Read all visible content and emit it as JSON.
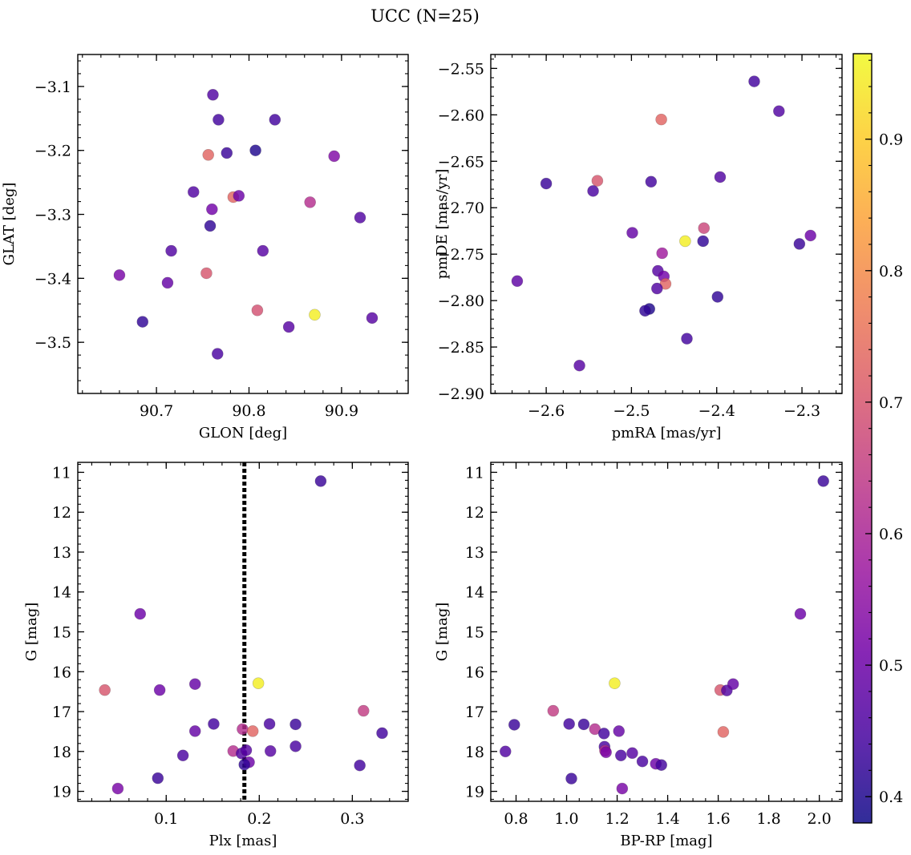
{
  "title": "UCC (N=25)",
  "colormap": {
    "name": "plasma",
    "stops": [
      "#0d0887",
      "#46039f",
      "#7201a8",
      "#9c179e",
      "#bd3786",
      "#d8576b",
      "#ed7953",
      "#fb9f3a",
      "#fdca26",
      "#f0f921"
    ],
    "range": [
      0.38,
      0.965
    ],
    "ticks": [
      0.4,
      0.5,
      0.6,
      0.7,
      0.8,
      0.9
    ],
    "tick_labels": [
      "0.4",
      "0.5",
      "0.6",
      "0.7",
      "0.8",
      "0.9"
    ]
  },
  "chart_data": [
    {
      "type": "scatter",
      "id": "glon-glat",
      "xlabel": "GLON [deg]",
      "ylabel": "GLAT [deg]",
      "xlim": [
        90.615,
        90.972
      ],
      "ylim": [
        -3.58,
        -3.05
      ],
      "invert_y": false,
      "xticks": [
        90.7,
        90.8,
        90.9
      ],
      "xtick_labels": [
        "90.7",
        "90.8",
        "90.9"
      ],
      "xminor": 0.02,
      "yticks": [
        -3.5,
        -3.4,
        -3.3,
        -3.2,
        -3.1
      ],
      "ytick_labels": [
        "−3.5",
        "−3.4",
        "−3.3",
        "−3.2",
        "−3.1"
      ],
      "yminor": 0.02,
      "points": [
        {
          "x": 90.761,
          "y": -3.113,
          "c": 0.46
        },
        {
          "x": 90.767,
          "y": -3.152,
          "c": 0.44
        },
        {
          "x": 90.828,
          "y": -3.152,
          "c": 0.44
        },
        {
          "x": 90.756,
          "y": -3.207,
          "c": 0.73
        },
        {
          "x": 90.776,
          "y": -3.204,
          "c": 0.43
        },
        {
          "x": 90.807,
          "y": -3.2,
          "c": 0.4
        },
        {
          "x": 90.892,
          "y": -3.209,
          "c": 0.53
        },
        {
          "x": 90.74,
          "y": -3.265,
          "c": 0.46
        },
        {
          "x": 90.783,
          "y": -3.273,
          "c": 0.73
        },
        {
          "x": 90.789,
          "y": -3.271,
          "c": 0.5
        },
        {
          "x": 90.866,
          "y": -3.281,
          "c": 0.62
        },
        {
          "x": 90.76,
          "y": -3.292,
          "c": 0.51
        },
        {
          "x": 90.92,
          "y": -3.305,
          "c": 0.46
        },
        {
          "x": 90.758,
          "y": -3.318,
          "c": 0.42
        },
        {
          "x": 90.716,
          "y": -3.357,
          "c": 0.46
        },
        {
          "x": 90.815,
          "y": -3.357,
          "c": 0.47
        },
        {
          "x": 90.66,
          "y": -3.395,
          "c": 0.52
        },
        {
          "x": 90.754,
          "y": -3.392,
          "c": 0.7
        },
        {
          "x": 90.712,
          "y": -3.407,
          "c": 0.49
        },
        {
          "x": 90.809,
          "y": -3.45,
          "c": 0.69
        },
        {
          "x": 90.871,
          "y": -3.457,
          "c": 0.95
        },
        {
          "x": 90.933,
          "y": -3.462,
          "c": 0.47
        },
        {
          "x": 90.685,
          "y": -3.468,
          "c": 0.42
        },
        {
          "x": 90.843,
          "y": -3.476,
          "c": 0.47
        },
        {
          "x": 90.766,
          "y": -3.518,
          "c": 0.45
        }
      ]
    },
    {
      "type": "scatter",
      "id": "pmra-pmde",
      "xlabel": "pmRA [mas/yr]",
      "ylabel": "pmDE [mas/yr]",
      "xlim": [
        -2.665,
        -2.253
      ],
      "ylim": [
        -2.9,
        -2.535
      ],
      "invert_y": false,
      "xticks": [
        -2.6,
        -2.5,
        -2.4,
        -2.3
      ],
      "xtick_labels": [
        "−2.6",
        "−2.5",
        "−2.4",
        "−2.3"
      ],
      "xminor": 0.02,
      "yticks": [
        -2.9,
        -2.85,
        -2.8,
        -2.75,
        -2.7,
        -2.65,
        -2.6,
        -2.55
      ],
      "ytick_labels": [
        "−2.90",
        "−2.85",
        "−2.80",
        "−2.75",
        "−2.70",
        "−2.65",
        "−2.60",
        "−2.55"
      ],
      "yminor": 0.01,
      "points": [
        {
          "x": -2.356,
          "y": -2.564,
          "c": 0.44
        },
        {
          "x": -2.327,
          "y": -2.596,
          "c": 0.46
        },
        {
          "x": -2.465,
          "y": -2.605,
          "c": 0.73
        },
        {
          "x": -2.54,
          "y": -2.671,
          "c": 0.7
        },
        {
          "x": -2.6,
          "y": -2.674,
          "c": 0.43
        },
        {
          "x": -2.477,
          "y": -2.672,
          "c": 0.44
        },
        {
          "x": -2.396,
          "y": -2.667,
          "c": 0.46
        },
        {
          "x": -2.545,
          "y": -2.682,
          "c": 0.45
        },
        {
          "x": -2.499,
          "y": -2.727,
          "c": 0.49
        },
        {
          "x": -2.415,
          "y": -2.722,
          "c": 0.67
        },
        {
          "x": -2.437,
          "y": -2.736,
          "c": 0.95
        },
        {
          "x": -2.416,
          "y": -2.736,
          "c": 0.42
        },
        {
          "x": -2.303,
          "y": -2.739,
          "c": 0.43
        },
        {
          "x": -2.29,
          "y": -2.73,
          "c": 0.5
        },
        {
          "x": -2.464,
          "y": -2.749,
          "c": 0.58
        },
        {
          "x": -2.469,
          "y": -2.768,
          "c": 0.47
        },
        {
          "x": -2.462,
          "y": -2.774,
          "c": 0.51
        },
        {
          "x": -2.46,
          "y": -2.782,
          "c": 0.73
        },
        {
          "x": -2.47,
          "y": -2.787,
          "c": 0.46
        },
        {
          "x": -2.634,
          "y": -2.779,
          "c": 0.48
        },
        {
          "x": -2.399,
          "y": -2.796,
          "c": 0.42
        },
        {
          "x": -2.479,
          "y": -2.809,
          "c": 0.4
        },
        {
          "x": -2.484,
          "y": -2.811,
          "c": 0.42
        },
        {
          "x": -2.435,
          "y": -2.841,
          "c": 0.44
        },
        {
          "x": -2.561,
          "y": -2.87,
          "c": 0.47
        }
      ]
    },
    {
      "type": "scatter",
      "id": "plx-g",
      "xlabel": "Plx [mas]",
      "ylabel": "G [mag]",
      "xlim": [
        0.005,
        0.36
      ],
      "ylim": [
        10.75,
        19.25
      ],
      "invert_y": true,
      "xticks": [
        0.1,
        0.2,
        0.3
      ],
      "xtick_labels": [
        "0.1",
        "0.2",
        "0.3"
      ],
      "xminor": 0.02,
      "yticks": [
        11,
        12,
        13,
        14,
        15,
        16,
        17,
        18,
        19
      ],
      "ytick_labels": [
        "11",
        "12",
        "13",
        "14",
        "15",
        "16",
        "17",
        "18",
        "19"
      ],
      "yminor": 0.2,
      "vline": {
        "x": 0.184,
        "style": "dotted",
        "color": "#000000"
      },
      "points": [
        {
          "x": 0.266,
          "y": 11.22,
          "c": 0.43
        },
        {
          "x": 0.072,
          "y": 14.55,
          "c": 0.5
        },
        {
          "x": 0.034,
          "y": 16.46,
          "c": 0.7
        },
        {
          "x": 0.093,
          "y": 16.46,
          "c": 0.5
        },
        {
          "x": 0.131,
          "y": 16.31,
          "c": 0.49
        },
        {
          "x": 0.199,
          "y": 16.29,
          "c": 0.95
        },
        {
          "x": 0.312,
          "y": 16.98,
          "c": 0.65
        },
        {
          "x": 0.151,
          "y": 17.31,
          "c": 0.44
        },
        {
          "x": 0.131,
          "y": 17.49,
          "c": 0.49
        },
        {
          "x": 0.182,
          "y": 17.44,
          "c": 0.62
        },
        {
          "x": 0.193,
          "y": 17.49,
          "c": 0.73
        },
        {
          "x": 0.211,
          "y": 17.31,
          "c": 0.45
        },
        {
          "x": 0.239,
          "y": 17.32,
          "c": 0.43
        },
        {
          "x": 0.332,
          "y": 17.54,
          "c": 0.44
        },
        {
          "x": 0.239,
          "y": 17.87,
          "c": 0.45
        },
        {
          "x": 0.118,
          "y": 18.1,
          "c": 0.45
        },
        {
          "x": 0.172,
          "y": 17.99,
          "c": 0.62
        },
        {
          "x": 0.181,
          "y": 18.05,
          "c": 0.46
        },
        {
          "x": 0.186,
          "y": 17.97,
          "c": 0.47
        },
        {
          "x": 0.212,
          "y": 17.99,
          "c": 0.47
        },
        {
          "x": 0.189,
          "y": 18.27,
          "c": 0.5
        },
        {
          "x": 0.184,
          "y": 18.33,
          "c": 0.42
        },
        {
          "x": 0.308,
          "y": 18.35,
          "c": 0.44
        },
        {
          "x": 0.091,
          "y": 18.67,
          "c": 0.43
        },
        {
          "x": 0.048,
          "y": 18.93,
          "c": 0.52
        }
      ]
    },
    {
      "type": "scatter",
      "id": "bprp-g",
      "xlabel": "BP-RP [mag]",
      "ylabel": "G [mag]",
      "xlim": [
        0.7,
        2.09
      ],
      "ylim": [
        10.75,
        19.25
      ],
      "invert_y": true,
      "xticks": [
        0.8,
        1.0,
        1.2,
        1.4,
        1.6,
        1.8,
        2.0
      ],
      "xtick_labels": [
        "0.8",
        "1.0",
        "1.2",
        "1.4",
        "1.6",
        "1.8",
        "2.0"
      ],
      "xminor": 0.05,
      "yticks": [
        11,
        12,
        13,
        14,
        15,
        16,
        17,
        18,
        19
      ],
      "ytick_labels": [
        "11",
        "12",
        "13",
        "14",
        "15",
        "16",
        "17",
        "18",
        "19"
      ],
      "yminor": 0.2,
      "points": [
        {
          "x": 2.016,
          "y": 11.22,
          "c": 0.43
        },
        {
          "x": 1.925,
          "y": 14.55,
          "c": 0.5
        },
        {
          "x": 1.19,
          "y": 16.29,
          "c": 0.95
        },
        {
          "x": 1.608,
          "y": 16.46,
          "c": 0.7
        },
        {
          "x": 1.634,
          "y": 16.47,
          "c": 0.46
        },
        {
          "x": 1.659,
          "y": 16.31,
          "c": 0.49
        },
        {
          "x": 0.947,
          "y": 16.98,
          "c": 0.65
        },
        {
          "x": 0.793,
          "y": 17.33,
          "c": 0.43
        },
        {
          "x": 1.01,
          "y": 17.31,
          "c": 0.44
        },
        {
          "x": 1.068,
          "y": 17.32,
          "c": 0.43
        },
        {
          "x": 1.112,
          "y": 17.44,
          "c": 0.62
        },
        {
          "x": 1.207,
          "y": 17.49,
          "c": 0.49
        },
        {
          "x": 1.62,
          "y": 17.51,
          "c": 0.73
        },
        {
          "x": 1.148,
          "y": 17.55,
          "c": 0.44
        },
        {
          "x": 1.15,
          "y": 17.88,
          "c": 0.45
        },
        {
          "x": 0.758,
          "y": 18.0,
          "c": 0.46
        },
        {
          "x": 1.152,
          "y": 17.98,
          "c": 0.62
        },
        {
          "x": 1.156,
          "y": 18.02,
          "c": 0.52
        },
        {
          "x": 1.215,
          "y": 18.1,
          "c": 0.45
        },
        {
          "x": 1.26,
          "y": 18.04,
          "c": 0.47
        },
        {
          "x": 1.3,
          "y": 18.25,
          "c": 0.45
        },
        {
          "x": 1.353,
          "y": 18.31,
          "c": 0.5
        },
        {
          "x": 1.375,
          "y": 18.34,
          "c": 0.44
        },
        {
          "x": 1.019,
          "y": 18.68,
          "c": 0.43
        },
        {
          "x": 1.22,
          "y": 18.93,
          "c": 0.52
        }
      ]
    }
  ]
}
